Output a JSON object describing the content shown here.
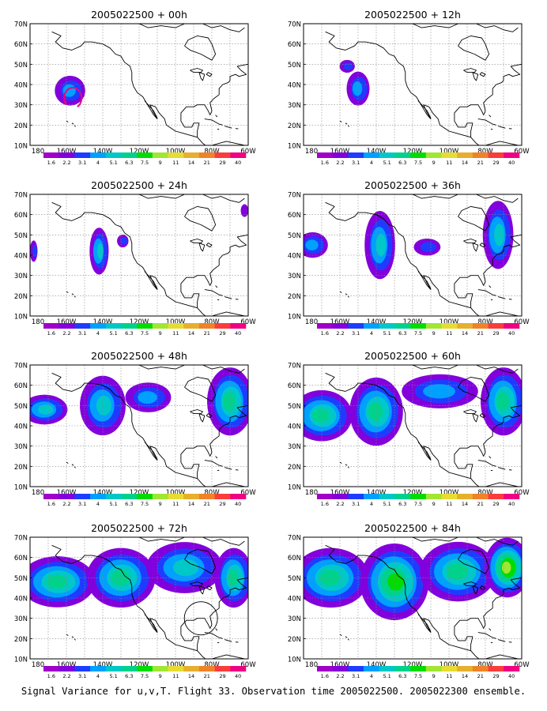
{
  "caption": "Signal Variance for u,v,T. Flight 33. Observation time 2005022500. 2005022300 ensemble.",
  "map": {
    "lat_labels": [
      "70N",
      "60N",
      "50N",
      "40N",
      "30N",
      "20N",
      "10N"
    ],
    "lon_labels": [
      "180",
      "160W",
      "140W",
      "120W",
      "100W",
      "80W",
      "60W"
    ]
  },
  "colorbar": {
    "labels": [
      "1.6",
      "2.2",
      "3.1",
      "4",
      "5.1",
      "6.3",
      "7.5",
      "9",
      "11",
      "14",
      "21",
      "29",
      "40"
    ],
    "colors": [
      "#a000c8",
      "#8200dc",
      "#1e3cff",
      "#00a0ff",
      "#00c8c8",
      "#00d28c",
      "#00dc00",
      "#a0e632",
      "#e6dc32",
      "#e6af2d",
      "#f08228",
      "#fa3c3c",
      "#f00082"
    ]
  },
  "plume_color": "#8200dc",
  "overlay_color": "#f00082",
  "panels": [
    {
      "title": "2005022500 + 00h",
      "plumes": [
        {
          "cx": -158,
          "cy": 37,
          "rx": 8,
          "ry": 7,
          "level": 3
        }
      ],
      "circle": true,
      "ring": false
    },
    {
      "title": "2005022500 + 12h",
      "plumes": [
        {
          "cx": -150,
          "cy": 38,
          "rx": 6,
          "ry": 8,
          "level": 3
        },
        {
          "cx": -156,
          "cy": 49,
          "rx": 4,
          "ry": 3,
          "level": 2
        }
      ],
      "circle": false,
      "ring": false
    },
    {
      "title": "2005022500 + 24h",
      "plumes": [
        {
          "cx": -142,
          "cy": 42,
          "rx": 5,
          "ry": 11,
          "level": 4
        },
        {
          "cx": -129,
          "cy": 47,
          "rx": 3,
          "ry": 3,
          "level": 2
        },
        {
          "cx": -178,
          "cy": 42,
          "rx": 2,
          "ry": 5,
          "level": 2
        },
        {
          "cx": -62,
          "cy": 62,
          "rx": 2,
          "ry": 3,
          "level": 1
        }
      ],
      "circle": false,
      "ring": false
    },
    {
      "title": "2005022500 + 36h",
      "plumes": [
        {
          "cx": -175,
          "cy": 45,
          "rx": 8,
          "ry": 6,
          "level": 3
        },
        {
          "cx": -138,
          "cy": 45,
          "rx": 8,
          "ry": 16,
          "level": 4
        },
        {
          "cx": -112,
          "cy": 44,
          "rx": 7,
          "ry": 4,
          "level": 2
        },
        {
          "cx": -73,
          "cy": 50,
          "rx": 8,
          "ry": 16,
          "level": 4
        }
      ],
      "circle": false,
      "ring": false
    },
    {
      "title": "2005022500 + 48h",
      "plumes": [
        {
          "cx": -172,
          "cy": 48,
          "rx": 12,
          "ry": 7,
          "level": 4
        },
        {
          "cx": -140,
          "cy": 50,
          "rx": 12,
          "ry": 14,
          "level": 4
        },
        {
          "cx": -115,
          "cy": 54,
          "rx": 12,
          "ry": 7,
          "level": 3
        },
        {
          "cx": -70,
          "cy": 52,
          "rx": 12,
          "ry": 16,
          "level": 5
        }
      ],
      "circle": false,
      "ring": false
    },
    {
      "title": "2005022500 + 60h",
      "plumes": [
        {
          "cx": -170,
          "cy": 45,
          "rx": 16,
          "ry": 12,
          "level": 5
        },
        {
          "cx": -140,
          "cy": 47,
          "rx": 14,
          "ry": 16,
          "level": 5
        },
        {
          "cx": -105,
          "cy": 57,
          "rx": 20,
          "ry": 8,
          "level": 3
        },
        {
          "cx": -70,
          "cy": 52,
          "rx": 12,
          "ry": 16,
          "level": 5
        }
      ],
      "circle": false,
      "ring": false
    },
    {
      "title": "2005022500 + 72h",
      "plumes": [
        {
          "cx": -165,
          "cy": 48,
          "rx": 20,
          "ry": 12,
          "level": 5
        },
        {
          "cx": -130,
          "cy": 50,
          "rx": 18,
          "ry": 14,
          "level": 5
        },
        {
          "cx": -95,
          "cy": 55,
          "rx": 20,
          "ry": 12,
          "level": 4
        },
        {
          "cx": -68,
          "cy": 50,
          "rx": 10,
          "ry": 14,
          "level": 5
        }
      ],
      "circle": false,
      "ring": true
    },
    {
      "title": "2005022500 + 84h",
      "plumes": [
        {
          "cx": -165,
          "cy": 50,
          "rx": 20,
          "ry": 14,
          "level": 5
        },
        {
          "cx": -130,
          "cy": 48,
          "rx": 18,
          "ry": 18,
          "level": 6
        },
        {
          "cx": -95,
          "cy": 53,
          "rx": 20,
          "ry": 14,
          "level": 5
        },
        {
          "cx": -68,
          "cy": 55,
          "rx": 12,
          "ry": 14,
          "level": 7
        }
      ],
      "circle": false,
      "ring": false
    }
  ]
}
